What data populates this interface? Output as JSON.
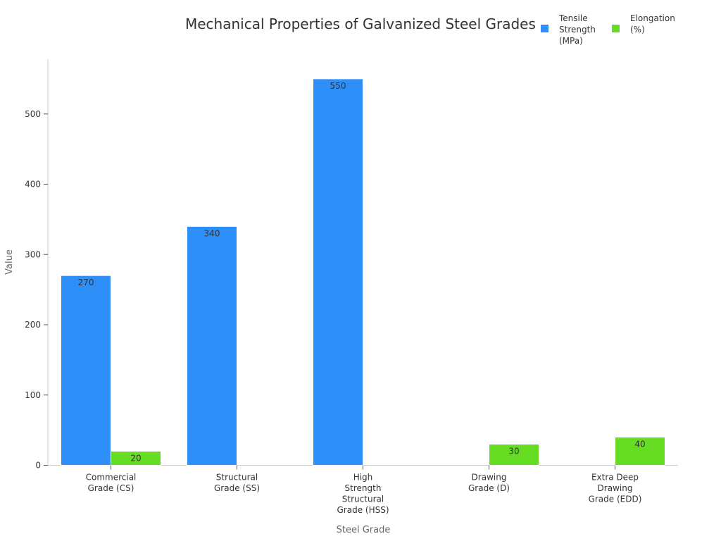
{
  "chart_data": {
    "type": "bar",
    "title": "Mechanical Properties of Galvanized Steel Grades",
    "xlabel": "Steel Grade",
    "ylabel": "Value",
    "categories": [
      "Commercial\nGrade (CS)",
      "Structural\nGrade (SS)",
      "High\nStrength\nStructural\nGrade (HSS)",
      "Drawing\nGrade (D)",
      "Extra Deep\nDrawing\nGrade (EDD)"
    ],
    "series": [
      {
        "name": "Tensile\nStrength\n(MPa)",
        "color": "#2d8ff7",
        "values": [
          270,
          340,
          550,
          null,
          null
        ]
      },
      {
        "name": "Elongation\n(%)",
        "color": "#66dd22",
        "values": [
          20,
          null,
          null,
          30,
          40
        ]
      }
    ],
    "yticks": [
      "0",
      "100",
      "200",
      "300",
      "400",
      "500"
    ],
    "ylim": [
      0,
      580
    ],
    "grid": false,
    "legend_position": "top-right"
  }
}
